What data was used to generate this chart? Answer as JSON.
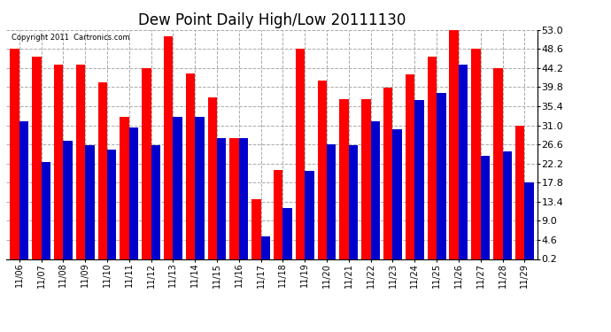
{
  "title": "Dew Point Daily High/Low 20111130",
  "copyright": "Copyright 2011  Cartronics.com",
  "dates": [
    "11/06",
    "11/07",
    "11/08",
    "11/09",
    "11/10",
    "11/11",
    "11/12",
    "11/13",
    "11/14",
    "11/15",
    "11/16",
    "11/17",
    "11/18",
    "11/19",
    "11/20",
    "11/21",
    "11/22",
    "11/23",
    "11/24",
    "11/25",
    "11/26",
    "11/27",
    "11/28",
    "11/29"
  ],
  "highs": [
    48.6,
    46.8,
    45.0,
    45.0,
    41.0,
    33.0,
    44.2,
    51.5,
    43.0,
    37.5,
    28.0,
    14.0,
    20.8,
    48.6,
    41.4,
    37.0,
    37.0,
    39.6,
    42.8,
    46.8,
    53.0,
    48.6,
    44.2,
    31.0
  ],
  "lows": [
    32.0,
    22.5,
    27.5,
    26.5,
    25.5,
    30.5,
    26.5,
    33.0,
    33.0,
    28.0,
    28.0,
    5.5,
    12.0,
    20.5,
    26.6,
    26.5,
    32.0,
    30.0,
    36.8,
    38.5,
    45.0,
    24.0,
    25.0,
    17.8
  ],
  "high_color": "#ff0000",
  "low_color": "#0000cc",
  "background_color": "#ffffff",
  "grid_color": "#aaaaaa",
  "title_fontsize": 12,
  "ylim_min": 0.2,
  "ylim_max": 53.0,
  "yticks": [
    0.2,
    4.6,
    9.0,
    13.4,
    17.8,
    22.2,
    26.6,
    31.0,
    35.4,
    39.8,
    44.2,
    48.6,
    53.0
  ]
}
